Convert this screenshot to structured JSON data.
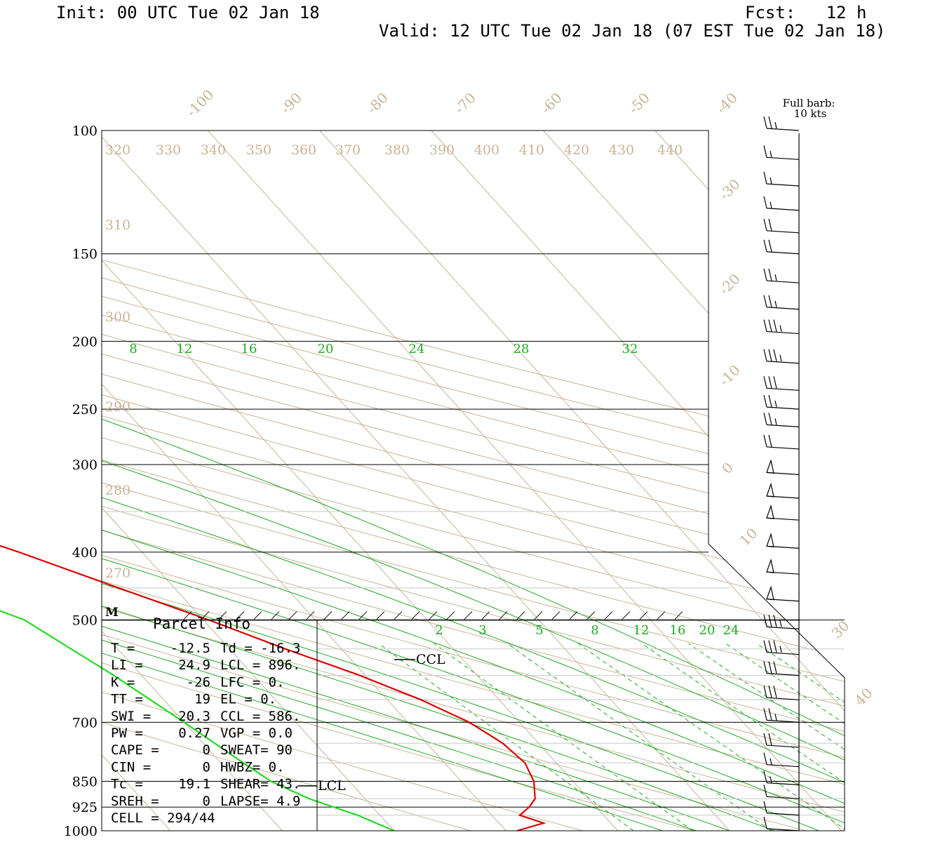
{
  "header": {
    "init": "Init: 00 UTC Tue 02 Jan 18",
    "fcst": "Fcst:   12 h",
    "valid": "Valid: 12 UTC Tue 02 Jan 18 (07 EST Tue 02 Jan 18)"
  },
  "legend": {
    "barb_line1": "Full barb:",
    "barb_line2": "10 kts"
  },
  "parcel_info": {
    "title": "Parcel Info",
    "rows": [
      [
        "T  =",
        "-12.5",
        "Td = -16.3"
      ],
      [
        "LI =",
        "24.9",
        "LCL =  896."
      ],
      [
        "K  =",
        "-26",
        "LFC =    0."
      ],
      [
        "TT =",
        "19",
        "EL  =    0."
      ],
      [
        "SWI =",
        "20.3",
        "CCL =  586."
      ],
      [
        "PW =",
        "0.27",
        "VGP =   0.0"
      ],
      [
        "CAPE =",
        "0",
        "SWEAT=   90"
      ],
      [
        "CIN =",
        "0",
        "HWBZ=    0."
      ],
      [
        "Tc =",
        "19.1",
        "SHEAR=   43."
      ],
      [
        "SREH =",
        "0",
        "LAPSE=   4.9"
      ],
      [
        "CELL = 294/44",
        "",
        ""
      ]
    ]
  },
  "marker_m": "M",
  "ccl_label": "CCL",
  "lcl_label": "LCL",
  "colors": {
    "temperature": "#e00000",
    "dewpoint": "#22dd22",
    "mixing_ratio": "#22aa22",
    "background_lines": "#c8b496",
    "pressure_lines": "#000000"
  },
  "chart_data": {
    "type": "line",
    "title": "",
    "xlabel": "",
    "ylabel": "",
    "pressure_axis": {
      "scale": "log",
      "labels": [
        "100",
        "150",
        "200",
        "250",
        "300",
        "400",
        "500",
        "700",
        "850",
        "925",
        "1000"
      ],
      "values": [
        100,
        150,
        200,
        250,
        300,
        400,
        500,
        700,
        850,
        925,
        1000
      ]
    },
    "isotherm_labels": [
      "-100",
      "-90",
      "-80",
      "-70",
      "-60",
      "-50",
      "-40",
      "-30",
      "-20",
      "-10",
      "0",
      "10",
      "30",
      "40"
    ],
    "theta_labels": [
      "320",
      "330",
      "340",
      "350",
      "360",
      "370",
      "380",
      "390",
      "400",
      "410",
      "420",
      "430",
      "440",
      "310",
      "300",
      "290",
      "280",
      "270"
    ],
    "mixing_ratio_labels_upper": [
      "8",
      "12",
      "16",
      "20",
      "24",
      "28",
      "32"
    ],
    "mixing_ratio_labels_lower": [
      "2",
      "3",
      "5",
      "8",
      "12",
      "16",
      "20",
      "24"
    ],
    "series": [
      {
        "key": "temperature",
        "points": [
          [
            1000,
            -19.0
          ],
          [
            975,
            -16.0
          ],
          [
            950,
            -17.5
          ],
          [
            925,
            -16.0
          ],
          [
            900,
            -14.8
          ],
          [
            850,
            -13.5
          ],
          [
            800,
            -12.8
          ],
          [
            750,
            -13.2
          ],
          [
            700,
            -14.5
          ],
          [
            650,
            -17.0
          ],
          [
            600,
            -20.5
          ],
          [
            550,
            -25.0
          ],
          [
            500,
            -29.5
          ],
          [
            450,
            -35.0
          ],
          [
            400,
            -41.0
          ],
          [
            350,
            -48.5
          ],
          [
            330,
            -51.5
          ],
          [
            300,
            -51.0
          ],
          [
            280,
            -50.0
          ],
          [
            250,
            -49.5
          ],
          [
            200,
            -50.0
          ],
          [
            175,
            -51.0
          ],
          [
            150,
            -52.0
          ],
          [
            130,
            -53.0
          ],
          [
            115,
            -54.0
          ],
          [
            105,
            -53.5
          ],
          [
            100,
            -52.5
          ]
        ]
      },
      {
        "key": "dewpoint",
        "points": [
          [
            1000,
            -30.0
          ],
          [
            975,
            -31.0
          ],
          [
            950,
            -32.0
          ],
          [
            925,
            -33.5
          ],
          [
            900,
            -35.0
          ],
          [
            850,
            -37.0
          ],
          [
            800,
            -38.0
          ],
          [
            700,
            -40.0
          ],
          [
            600,
            -42.5
          ],
          [
            500,
            -46.0
          ],
          [
            450,
            -51.0
          ],
          [
            400,
            -56.0
          ],
          [
            350,
            -62.0
          ],
          [
            330,
            -64.0
          ],
          [
            300,
            -65.0
          ],
          [
            270,
            -65.5
          ],
          [
            250,
            -66.5
          ],
          [
            240,
            -67.5
          ],
          [
            200,
            -73.0
          ],
          [
            190,
            -76.5
          ],
          [
            170,
            -80.0
          ],
          [
            150,
            -79.0
          ],
          [
            130,
            -79.5
          ],
          [
            115,
            -80.5
          ],
          [
            105,
            -82.0
          ]
        ]
      }
    ],
    "wind_barbs": [
      [
        100,
        25
      ],
      [
        110,
        15
      ],
      [
        120,
        15
      ],
      [
        130,
        15
      ],
      [
        140,
        20
      ],
      [
        150,
        20
      ],
      [
        165,
        25
      ],
      [
        180,
        25
      ],
      [
        195,
        35
      ],
      [
        215,
        35
      ],
      [
        235,
        30
      ],
      [
        250,
        25
      ],
      [
        265,
        25
      ],
      [
        285,
        20
      ],
      [
        310,
        50
      ],
      [
        335,
        50
      ],
      [
        360,
        50
      ],
      [
        395,
        50
      ],
      [
        430,
        50
      ],
      [
        470,
        50
      ],
      [
        515,
        35
      ],
      [
        560,
        35
      ],
      [
        600,
        30
      ],
      [
        650,
        30
      ],
      [
        700,
        25
      ],
      [
        760,
        20
      ],
      [
        810,
        15
      ],
      [
        860,
        15
      ],
      [
        900,
        10
      ],
      [
        950,
        10
      ],
      [
        1000,
        10
      ]
    ]
  }
}
